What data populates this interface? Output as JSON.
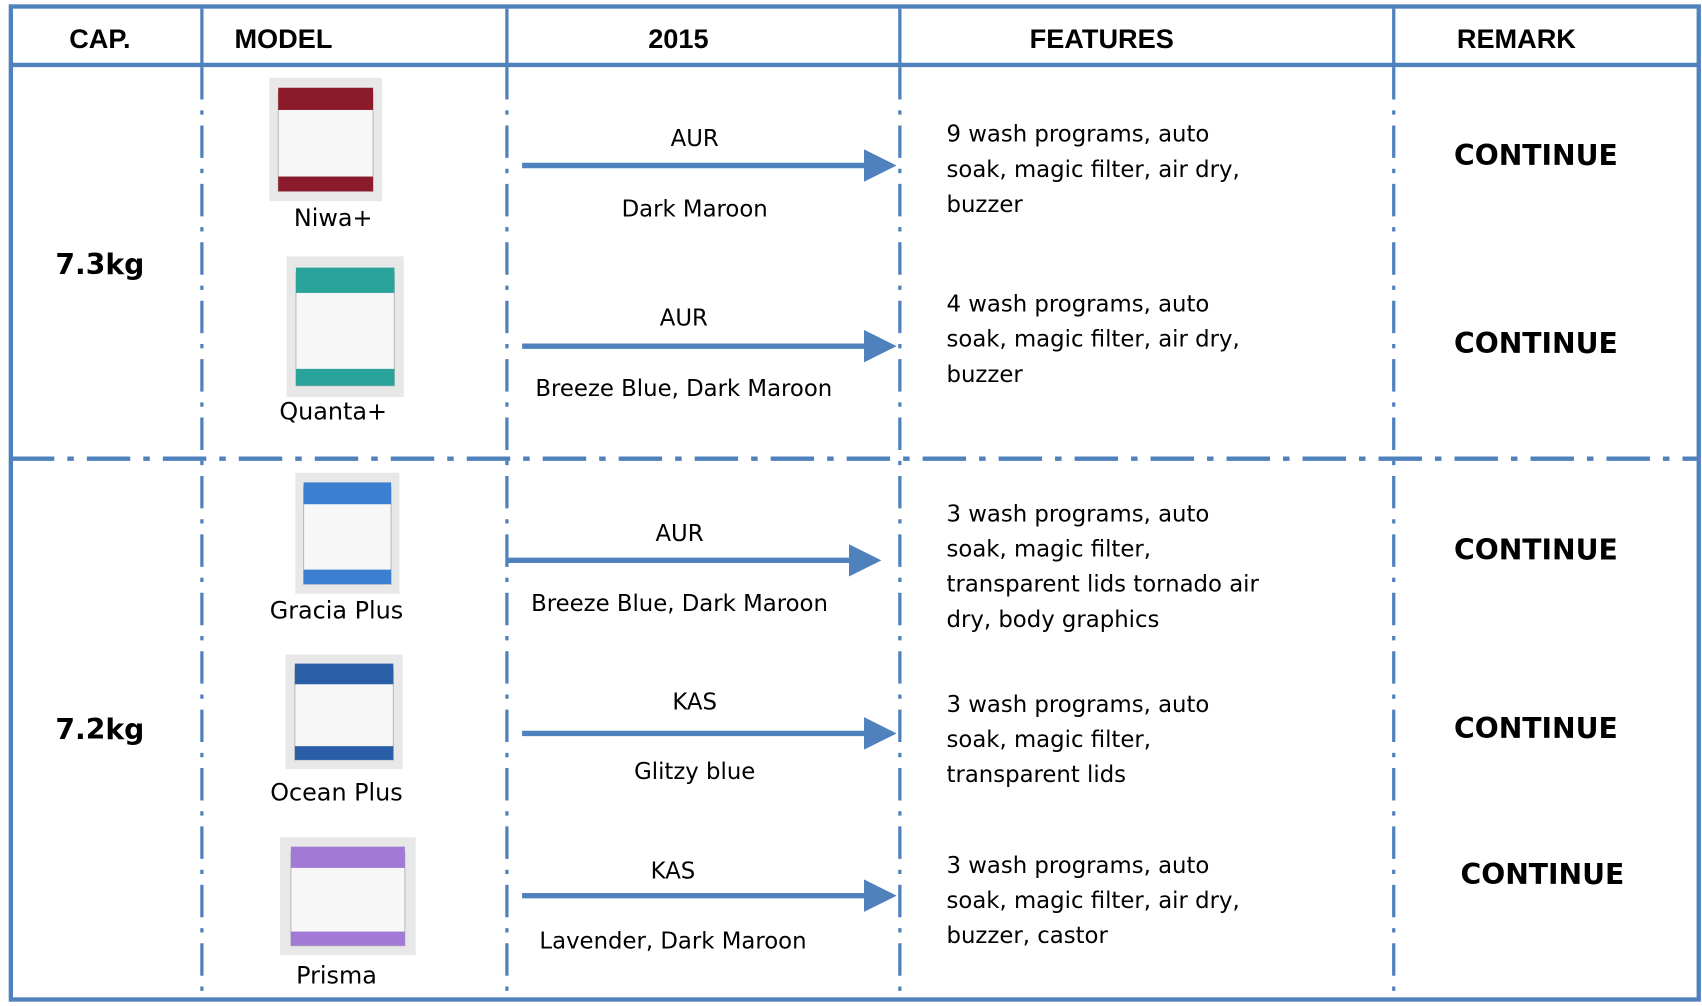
{
  "header": [
    "CAP.",
    "MODEL",
    "2015",
    "FEATURES",
    "REMARK"
  ],
  "groups": [
    {
      "capacity": "7.3kg",
      "models": [
        {
          "name": "Niwa+",
          "code": "AUR",
          "colors": "Dark Maroon",
          "features": [
            "9 wash programs, auto",
            "soak, magic filter, air dry,",
            "buzzer"
          ],
          "remark": "CONTINUE"
        },
        {
          "name": "Quanta+",
          "code": "AUR",
          "colors": "Breeze Blue, Dark Maroon",
          "features": [
            "4 wash programs, auto",
            "soak, magic filter, air dry,",
            "buzzer"
          ],
          "remark": "CONTINUE"
        }
      ]
    },
    {
      "capacity": "7.2kg",
      "models": [
        {
          "name": "Gracia Plus",
          "code": "AUR",
          "colors": "Breeze Blue, Dark Maroon",
          "features": [
            "3 wash programs, auto",
            "soak, magic filter,",
            "transparent lids tornado air",
            "dry, body graphics"
          ],
          "remark": "CONTINUE"
        },
        {
          "name": "Ocean Plus",
          "code": "KAS",
          "colors": "Glitzy blue",
          "features": [
            "3 wash programs, auto",
            "soak, magic filter,",
            "transparent lids"
          ],
          "remark": "CONTINUE"
        },
        {
          "name": "Prisma",
          "code": "KAS",
          "colors": "Lavender, Dark Maroon",
          "features": [
            "3 wash programs, auto",
            "soak, magic filter, air dry,",
            "buzzer, castor"
          ],
          "remark": "CONTINUE"
        }
      ]
    }
  ]
}
